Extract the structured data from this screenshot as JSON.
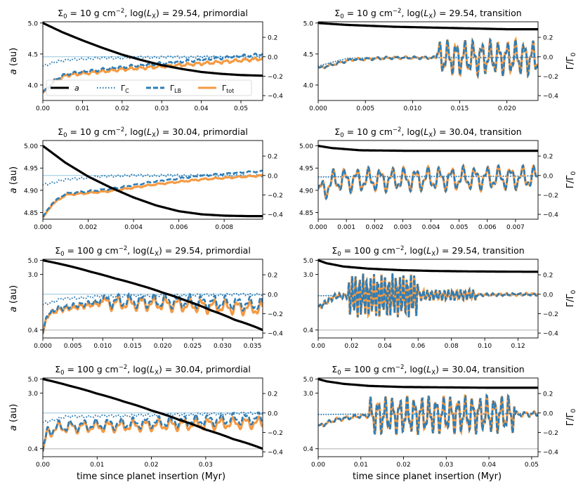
{
  "chart_data": {
    "type": "line",
    "layout": "4x2 grid",
    "shared_xlabel": "time since planet insertion (Myr)",
    "left_ylabel": "a (au)",
    "right_ylabel": "Γ/Γ0",
    "legend": {
      "placement": "lower center of first panel",
      "entries": [
        {
          "key": "a",
          "label": "a",
          "style": "solid",
          "color": "#000000"
        },
        {
          "key": "gc",
          "label": "Γ_C",
          "style": "dotted",
          "color": "#2f7db5"
        },
        {
          "key": "glb",
          "label": "Γ_LB",
          "style": "dashed",
          "color": "#2f7db5"
        },
        {
          "key": "gtot",
          "label": "Γ_tot",
          "style": "solid",
          "color": "#f59a43"
        }
      ]
    },
    "colors": {
      "a": "#000000",
      "gc": "#2f7db5",
      "glb": "#2f7db5",
      "gtot": "#f59a43",
      "zero": "#a9cfe3",
      "floor": "#c8c8c8"
    },
    "right_ylim": [
      -0.45,
      0.36
    ],
    "right_ticks": [
      "0.2",
      "0.0",
      "−0.2",
      "−0.4"
    ],
    "right_tick_values": [
      0.2,
      0.0,
      -0.2,
      -0.4
    ],
    "panels": [
      {
        "title": "Σ0 = 10 g cm^−2, log(LX) = 29.54, primordial",
        "sigma": "10",
        "lx": "29.54",
        "phase": "primordial",
        "xlim": [
          0,
          0.0555
        ],
        "xticks": [
          "0.00",
          "0.01",
          "0.02",
          "0.03",
          "0.04",
          "0.05"
        ],
        "xtick_values": [
          0,
          0.01,
          0.02,
          0.03,
          0.04,
          0.05
        ],
        "ylim": [
          3.75,
          5.02
        ],
        "yscale": "linear",
        "yticks": [
          "5.0",
          "4.5",
          "4.0"
        ],
        "ytick_values": [
          5.0,
          4.5,
          4.0
        ],
        "a_t": [
          0,
          0.005,
          0.01,
          0.015,
          0.02,
          0.025,
          0.03,
          0.035,
          0.04,
          0.045,
          0.05,
          0.0555
        ],
        "a_v": [
          5.0,
          4.85,
          4.72,
          4.6,
          4.49,
          4.4,
          4.32,
          4.26,
          4.21,
          4.18,
          4.16,
          4.15
        ],
        "gc_base": [
          [
            0,
            -0.1
          ],
          [
            0.003,
            -0.05
          ],
          [
            0.01,
            -0.02
          ],
          [
            0.025,
            -0.005
          ],
          [
            0.0555,
            0.0
          ]
        ],
        "gtot_base": [
          [
            0,
            -0.38
          ],
          [
            0.003,
            -0.25
          ],
          [
            0.006,
            -0.19
          ],
          [
            0.02,
            -0.13
          ],
          [
            0.04,
            -0.07
          ],
          [
            0.0555,
            -0.02
          ]
        ],
        "osc": [
          {
            "t0": 0.0,
            "t1": 0.0555,
            "amp": 0.012,
            "period": 0.0024
          }
        ],
        "zero_line": true,
        "floor_line": null,
        "primordial": true
      },
      {
        "title": "Σ0 = 10 g cm^−2, log(LX) = 29.54, transition",
        "sigma": "10",
        "lx": "29.54",
        "phase": "transition",
        "xlim": [
          0,
          0.0233
        ],
        "xticks": [
          "0.000",
          "0.005",
          "0.010",
          "0.015",
          "0.020"
        ],
        "xtick_values": [
          0,
          0.005,
          0.01,
          0.015,
          0.02
        ],
        "ylim": [
          3.75,
          5.02
        ],
        "yscale": "linear",
        "yticks": [
          "5.0",
          "4.5",
          "4.0"
        ],
        "ytick_values": [
          5.0,
          4.5,
          4.0
        ],
        "a_t": [
          0,
          0.003,
          0.008,
          0.014,
          0.02,
          0.0233
        ],
        "a_v": [
          5.0,
          4.97,
          4.94,
          4.92,
          4.9,
          4.9
        ],
        "gc_base": [
          [
            0,
            -0.1
          ],
          [
            0.003,
            -0.02
          ],
          [
            0.0233,
            0.0
          ]
        ],
        "gtot_base": [
          [
            0,
            -0.12
          ],
          [
            0.0035,
            -0.03
          ],
          [
            0.008,
            -0.01
          ],
          [
            0.0233,
            -0.01
          ]
        ],
        "osc": [
          {
            "t0": 0.0,
            "t1": 0.0125,
            "amp": 0.01,
            "period": 0.001
          },
          {
            "t0": 0.0125,
            "t1": 0.0233,
            "amp": 0.13,
            "period": 0.0009
          }
        ],
        "zero_line": false,
        "floor_line": null,
        "primordial": false
      },
      {
        "title": "Σ0 = 10 g cm^−2, log(LX) = 30.04, primordial",
        "sigma": "10",
        "lx": "30.04",
        "phase": "primordial",
        "xlim": [
          0,
          0.0097
        ],
        "xticks": [
          "0.000",
          "0.002",
          "0.004",
          "0.006",
          "0.008"
        ],
        "xtick_values": [
          0,
          0.002,
          0.004,
          0.006,
          0.008
        ],
        "ylim": [
          4.835,
          5.012
        ],
        "yscale": "linear",
        "yticks": [
          "5.00",
          "4.95",
          "4.90",
          "4.85"
        ],
        "ytick_values": [
          5.0,
          4.95,
          4.9,
          4.85
        ],
        "a_t": [
          0,
          0.001,
          0.002,
          0.003,
          0.004,
          0.005,
          0.006,
          0.007,
          0.008,
          0.009,
          0.0097
        ],
        "a_v": [
          5.0,
          4.962,
          4.931,
          4.906,
          4.884,
          4.866,
          4.853,
          4.846,
          4.843,
          4.842,
          4.842
        ],
        "gc_base": [
          [
            0,
            -0.1
          ],
          [
            0.0008,
            -0.05
          ],
          [
            0.002,
            -0.02
          ],
          [
            0.0035,
            0.0
          ],
          [
            0.0097,
            0.0
          ]
        ],
        "gtot_base": [
          [
            0,
            -0.44
          ],
          [
            0.0004,
            -0.3
          ],
          [
            0.001,
            -0.2
          ],
          [
            0.003,
            -0.16
          ],
          [
            0.005,
            -0.09
          ],
          [
            0.007,
            -0.04
          ],
          [
            0.0097,
            0.0
          ]
        ],
        "osc": [
          {
            "t0": 0.0,
            "t1": 0.0097,
            "amp": 0.006,
            "period": 0.0005
          }
        ],
        "zero_line": true,
        "floor_line": null,
        "primordial": true
      },
      {
        "title": "Σ0 = 10 g cm^−2, log(LX) = 30.04, transition",
        "sigma": "10",
        "lx": "30.04",
        "phase": "transition",
        "xlim": [
          0,
          0.0078
        ],
        "xticks": [
          "0.000",
          "0.001",
          "0.002",
          "0.003",
          "0.004",
          "0.005",
          "0.006",
          "0.007"
        ],
        "xtick_values": [
          0,
          0.001,
          0.002,
          0.003,
          0.004,
          0.005,
          0.006,
          0.007
        ],
        "ylim": [
          4.835,
          5.012
        ],
        "yscale": "linear",
        "yticks": [
          "5.00",
          "4.95",
          "4.90",
          "4.85"
        ],
        "ytick_values": [
          5.0,
          4.95,
          4.9,
          4.85
        ],
        "a_t": [
          0,
          0.0005,
          0.0015,
          0.003,
          0.0078
        ],
        "a_v": [
          5.0,
          4.995,
          4.99,
          4.989,
          4.989
        ],
        "gc_base": [
          [
            0,
            -0.02
          ],
          [
            0.0078,
            0.0
          ]
        ],
        "gtot_base": [
          [
            0,
            -0.18
          ],
          [
            0.0006,
            -0.05
          ],
          [
            0.0078,
            -0.02
          ]
        ],
        "osc": [
          {
            "t0": 0.0,
            "t1": 0.0078,
            "amp": 0.09,
            "period": 0.00042
          }
        ],
        "zero_line": false,
        "floor_line": null,
        "primordial": false
      },
      {
        "title": "Σ0 = 100 g cm^−2, log(LX) = 29.54, primordial",
        "sigma": "100",
        "lx": "29.54",
        "phase": "primordial",
        "xlim": [
          0,
          0.0367
        ],
        "xticks": [
          "0.000",
          "0.005",
          "0.010",
          "0.015",
          "0.020",
          "0.025",
          "0.030",
          "0.035"
        ],
        "xtick_values": [
          0,
          0.005,
          0.01,
          0.015,
          0.02,
          0.025,
          0.03,
          0.035
        ],
        "ylim": [
          0.3,
          5.2
        ],
        "yscale": "log",
        "yticks": [
          "5.0",
          "3.0",
          "0.4"
        ],
        "ytick_values": [
          5.0,
          3.0,
          0.4
        ],
        "a_t": [
          0,
          0.004,
          0.008,
          0.012,
          0.016,
          0.02,
          0.024,
          0.028,
          0.032,
          0.0367
        ],
        "a_v": [
          5.0,
          4.15,
          3.3,
          2.6,
          2.05,
          1.55,
          1.15,
          0.82,
          0.58,
          0.4
        ],
        "gc_base": [
          [
            0,
            -0.11
          ],
          [
            0.003,
            -0.05
          ],
          [
            0.01,
            -0.02
          ],
          [
            0.0367,
            0.0
          ]
        ],
        "gtot_base": [
          [
            0,
            -0.42
          ],
          [
            0.0007,
            -0.22
          ],
          [
            0.0025,
            -0.16
          ],
          [
            0.01,
            -0.09
          ],
          [
            0.02,
            -0.1
          ],
          [
            0.0367,
            -0.15
          ]
        ],
        "osc": [
          {
            "t0": 0.0,
            "t1": 0.01,
            "amp": 0.02,
            "period": 0.0012
          },
          {
            "t0": 0.01,
            "t1": 0.0367,
            "amp": 0.055,
            "period": 0.002
          }
        ],
        "zero_line": true,
        "floor_line": 0.4,
        "primordial": true
      },
      {
        "title": "Σ0 = 100 g cm^−2, log(LX) = 29.54, transition",
        "sigma": "100",
        "lx": "29.54",
        "phase": "transition",
        "xlim": [
          0,
          0.132
        ],
        "xticks": [
          "0.00",
          "0.02",
          "0.04",
          "0.06",
          "0.08",
          "0.10",
          "0.12"
        ],
        "xtick_values": [
          0,
          0.02,
          0.04,
          0.06,
          0.08,
          0.1,
          0.12
        ],
        "ylim": [
          0.3,
          5.2
        ],
        "yscale": "log",
        "yticks": [
          "5.0",
          "3.0",
          "0.4"
        ],
        "ytick_values": [
          5.0,
          3.0,
          0.4
        ],
        "a_t": [
          0,
          0.005,
          0.015,
          0.03,
          0.05,
          0.07,
          0.09,
          0.11,
          0.132
        ],
        "a_v": [
          5.0,
          4.5,
          4.0,
          3.7,
          3.5,
          3.4,
          3.35,
          3.32,
          3.3
        ],
        "gc_base": [
          [
            0,
            -0.02
          ],
          [
            0.132,
            0.0
          ]
        ],
        "gtot_base": [
          [
            0,
            -0.14
          ],
          [
            0.01,
            -0.02
          ],
          [
            0.132,
            0.0
          ]
        ],
        "osc": [
          {
            "t0": 0.0,
            "t1": 0.018,
            "amp": 0.02,
            "period": 0.003
          },
          {
            "t0": 0.018,
            "t1": 0.06,
            "amp": 0.16,
            "period": 0.0022
          },
          {
            "t0": 0.06,
            "t1": 0.095,
            "amp": 0.04,
            "period": 0.0025
          },
          {
            "t0": 0.095,
            "t1": 0.132,
            "amp": 0.01,
            "period": 0.004
          }
        ],
        "zero_line": false,
        "floor_line": 0.4,
        "primordial": false
      },
      {
        "title": "Σ0 = 100 g cm^−2, log(LX) = 30.04, primordial",
        "sigma": "100",
        "lx": "30.04",
        "phase": "primordial",
        "xlim": [
          0,
          0.0405
        ],
        "xticks": [
          "0.00",
          "0.01",
          "0.02",
          "0.03"
        ],
        "xtick_values": [
          0,
          0.01,
          0.02,
          0.03
        ],
        "ylim": [
          0.3,
          5.2
        ],
        "yscale": "log",
        "yticks": [
          "5.0",
          "3.0",
          "0.4"
        ],
        "ytick_values": [
          5.0,
          3.0,
          0.4
        ],
        "a_t": [
          0,
          0.005,
          0.01,
          0.015,
          0.02,
          0.025,
          0.03,
          0.035,
          0.0405
        ],
        "a_v": [
          5.0,
          3.9,
          2.95,
          2.2,
          1.6,
          1.15,
          0.8,
          0.57,
          0.4
        ],
        "gc_base": [
          [
            0,
            -0.1
          ],
          [
            0.004,
            -0.04
          ],
          [
            0.0405,
            0.0
          ]
        ],
        "gtot_base": [
          [
            0,
            -0.42
          ],
          [
            0.0008,
            -0.2
          ],
          [
            0.003,
            -0.15
          ],
          [
            0.0405,
            -0.1
          ]
        ],
        "osc": [
          {
            "t0": 0.0,
            "t1": 0.0405,
            "amp": 0.045,
            "period": 0.0023
          }
        ],
        "zero_line": true,
        "floor_line": 0.4,
        "primordial": true
      },
      {
        "title": "Σ0 = 100 g cm^−2, log(LX) = 30.04, transition",
        "sigma": "100",
        "lx": "30.04",
        "phase": "transition",
        "xlim": [
          0,
          0.0515
        ],
        "xticks": [
          "0.00",
          "0.01",
          "0.02",
          "0.03",
          "0.04",
          "0.05"
        ],
        "xtick_values": [
          0,
          0.01,
          0.02,
          0.03,
          0.04,
          0.05
        ],
        "ylim": [
          0.3,
          5.2
        ],
        "yscale": "log",
        "yticks": [
          "5.0",
          "3.0",
          "0.4"
        ],
        "ytick_values": [
          5.0,
          3.0,
          0.4
        ],
        "a_t": [
          0,
          0.002,
          0.006,
          0.012,
          0.02,
          0.03,
          0.04,
          0.0515
        ],
        "a_v": [
          5.0,
          4.6,
          4.2,
          3.9,
          3.75,
          3.7,
          3.65,
          3.65
        ],
        "gc_base": [
          [
            0,
            -0.02
          ],
          [
            0.0515,
            0.0
          ]
        ],
        "gtot_base": [
          [
            0,
            -0.14
          ],
          [
            0.004,
            -0.07
          ],
          [
            0.01,
            -0.03
          ],
          [
            0.0515,
            -0.01
          ]
        ],
        "osc": [
          {
            "t0": 0.0,
            "t1": 0.012,
            "amp": 0.015,
            "period": 0.002
          },
          {
            "t0": 0.012,
            "t1": 0.046,
            "amp": 0.14,
            "period": 0.0017
          },
          {
            "t0": 0.046,
            "t1": 0.0515,
            "amp": 0.02,
            "period": 0.002
          }
        ],
        "zero_line": false,
        "floor_line": 0.4,
        "primordial": false
      }
    ]
  }
}
